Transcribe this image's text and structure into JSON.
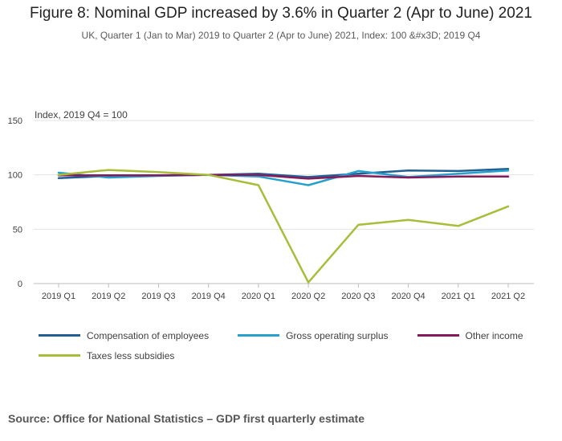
{
  "title": "Figure 8: Nominal GDP increased by 3.6% in Quarter 2 (Apr to June) 2021",
  "subtitle": "UK, Quarter 1 (Jan to Mar) 2019 to Quarter 2 (Apr to June) 2021, Index: 100 &#x3D; 2019 Q4",
  "source": "Source: Office for National Statistics – GDP first quarterly estimate",
  "chart_data": {
    "type": "line",
    "ylabel": "Index, 2019 Q4 = 100",
    "xlabel": "",
    "categories": [
      "2019 Q1",
      "2019 Q2",
      "2019 Q3",
      "2019 Q4",
      "2020 Q1",
      "2020 Q2",
      "2020 Q3",
      "2020 Q4",
      "2021 Q1",
      "2021 Q2"
    ],
    "ylim": [
      0,
      150
    ],
    "yticks": [
      0,
      50,
      100,
      150
    ],
    "grid": true,
    "legend_position": "bottom",
    "series": [
      {
        "name": "Compensation of employees",
        "color": "#206095",
        "values": [
          97,
          99,
          99.5,
          100,
          101,
          98,
          101,
          104,
          103.5,
          105.5
        ]
      },
      {
        "name": "Gross operating surplus",
        "color": "#27a0cc",
        "values": [
          102,
          97.5,
          99,
          100,
          98.5,
          90.5,
          103.5,
          98,
          101,
          104
        ]
      },
      {
        "name": "Other income",
        "color": "#871a5b",
        "values": [
          99.5,
          99.5,
          99.5,
          100,
          100,
          96.5,
          99,
          97.5,
          98.5,
          98.5
        ]
      },
      {
        "name": "Taxes less subsidies",
        "color": "#a8bd3a",
        "values": [
          100,
          104.5,
          102.5,
          100,
          90.5,
          1,
          54,
          58.5,
          53,
          71
        ]
      }
    ]
  }
}
